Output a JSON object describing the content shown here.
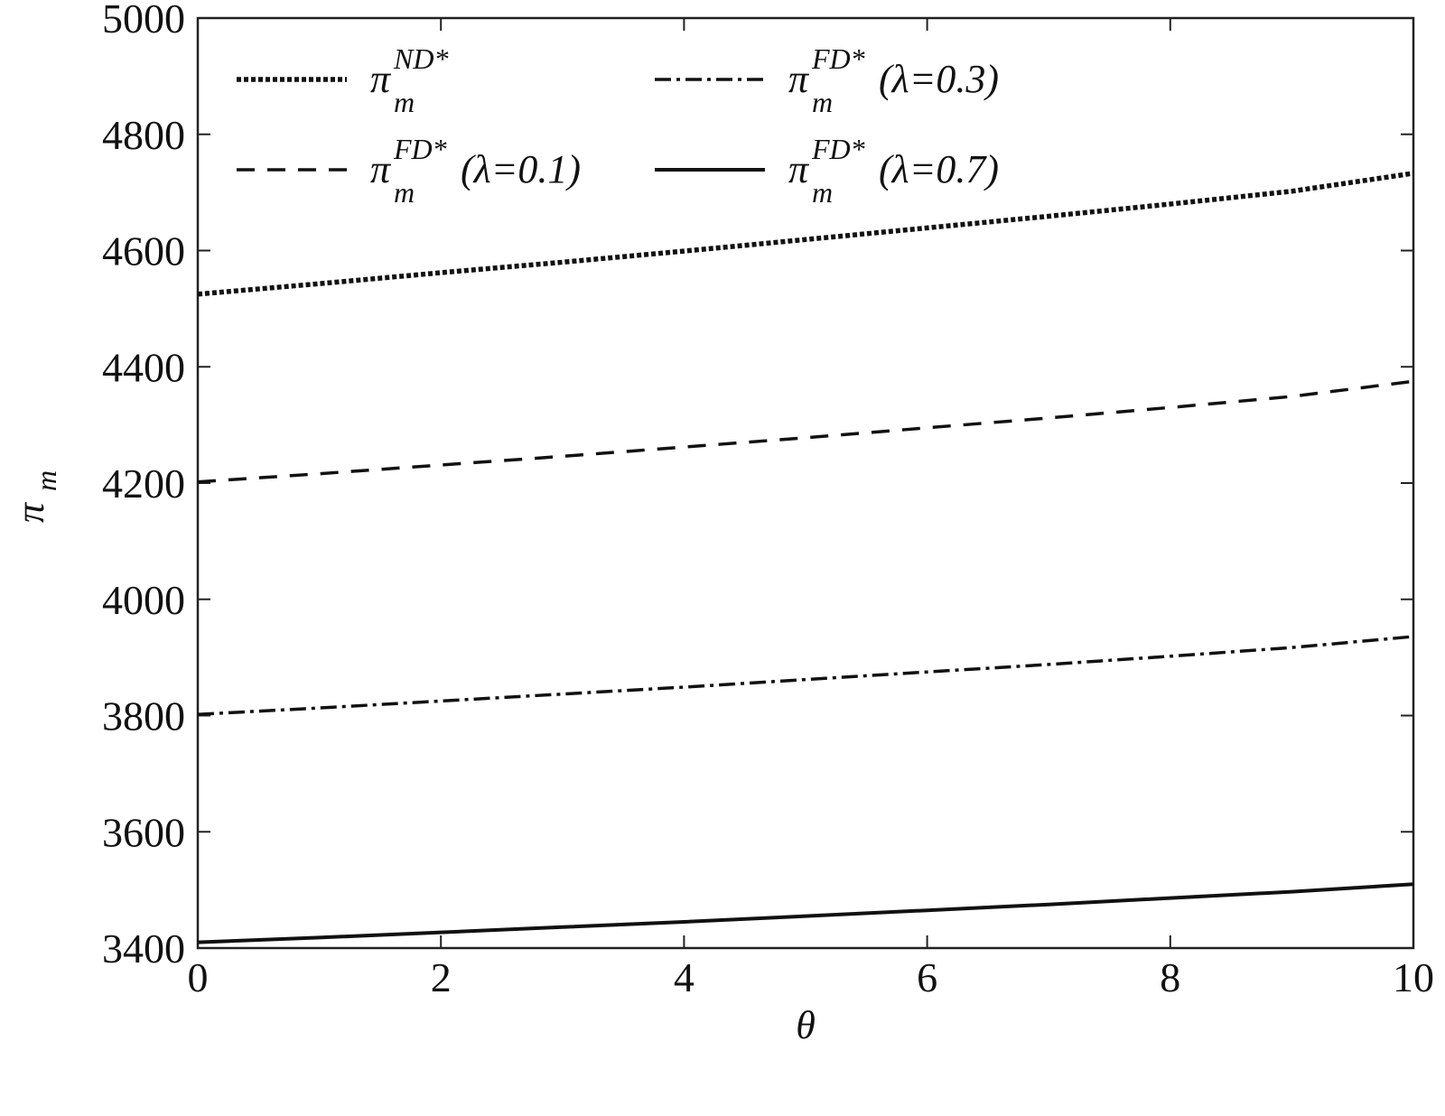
{
  "chart_data": {
    "type": "line",
    "title": "",
    "xlabel": "θ",
    "ylabel": {
      "base": "π",
      "sub": "m"
    },
    "xlim": [
      0,
      10
    ],
    "ylim": [
      3400,
      5000
    ],
    "xticks": [
      0,
      2,
      4,
      6,
      8,
      10
    ],
    "yticks": [
      3400,
      3600,
      3800,
      4000,
      4200,
      4400,
      4600,
      4800,
      5000
    ],
    "grid": false,
    "legend_position": "top-left",
    "x": [
      0,
      1,
      2,
      3,
      4,
      5,
      6,
      7,
      8,
      9,
      10
    ],
    "series": [
      {
        "name": "π_m^{ND*}",
        "legend": {
          "base": "π",
          "sub": "m",
          "sup": "ND*",
          "suffix": ""
        },
        "style": "dotted",
        "values": [
          4525,
          4543,
          4562,
          4580,
          4599,
          4619,
          4639,
          4659,
          4680,
          4702,
          4733
        ]
      },
      {
        "name": "π_m^{FD*}(λ=0.1)",
        "legend": {
          "base": "π",
          "sub": "m",
          "sup": "FD*",
          "suffix": "(λ=0.1)"
        },
        "style": "dashed",
        "values": [
          4202,
          4216,
          4231,
          4246,
          4262,
          4278,
          4295,
          4312,
          4330,
          4349,
          4375
        ]
      },
      {
        "name": "π_m^{FD*}(λ=0.3)",
        "legend": {
          "base": "π",
          "sub": "m",
          "sup": "FD*",
          "suffix": "(λ=0.3)"
        },
        "style": "dashdot",
        "values": [
          3802,
          3813,
          3825,
          3837,
          3849,
          3862,
          3875,
          3888,
          3902,
          3917,
          3936
        ]
      },
      {
        "name": "π_m^{FD*}(λ=0.7)",
        "legend": {
          "base": "π",
          "sub": "m",
          "sup": "FD*",
          "suffix": "(λ=0.7)"
        },
        "style": "solid",
        "values": [
          3410,
          3418,
          3427,
          3436,
          3445,
          3455,
          3465,
          3475,
          3486,
          3497,
          3510
        ]
      }
    ]
  },
  "colors": {
    "line": "#111111",
    "axis": "#222222",
    "background": "#ffffff"
  }
}
